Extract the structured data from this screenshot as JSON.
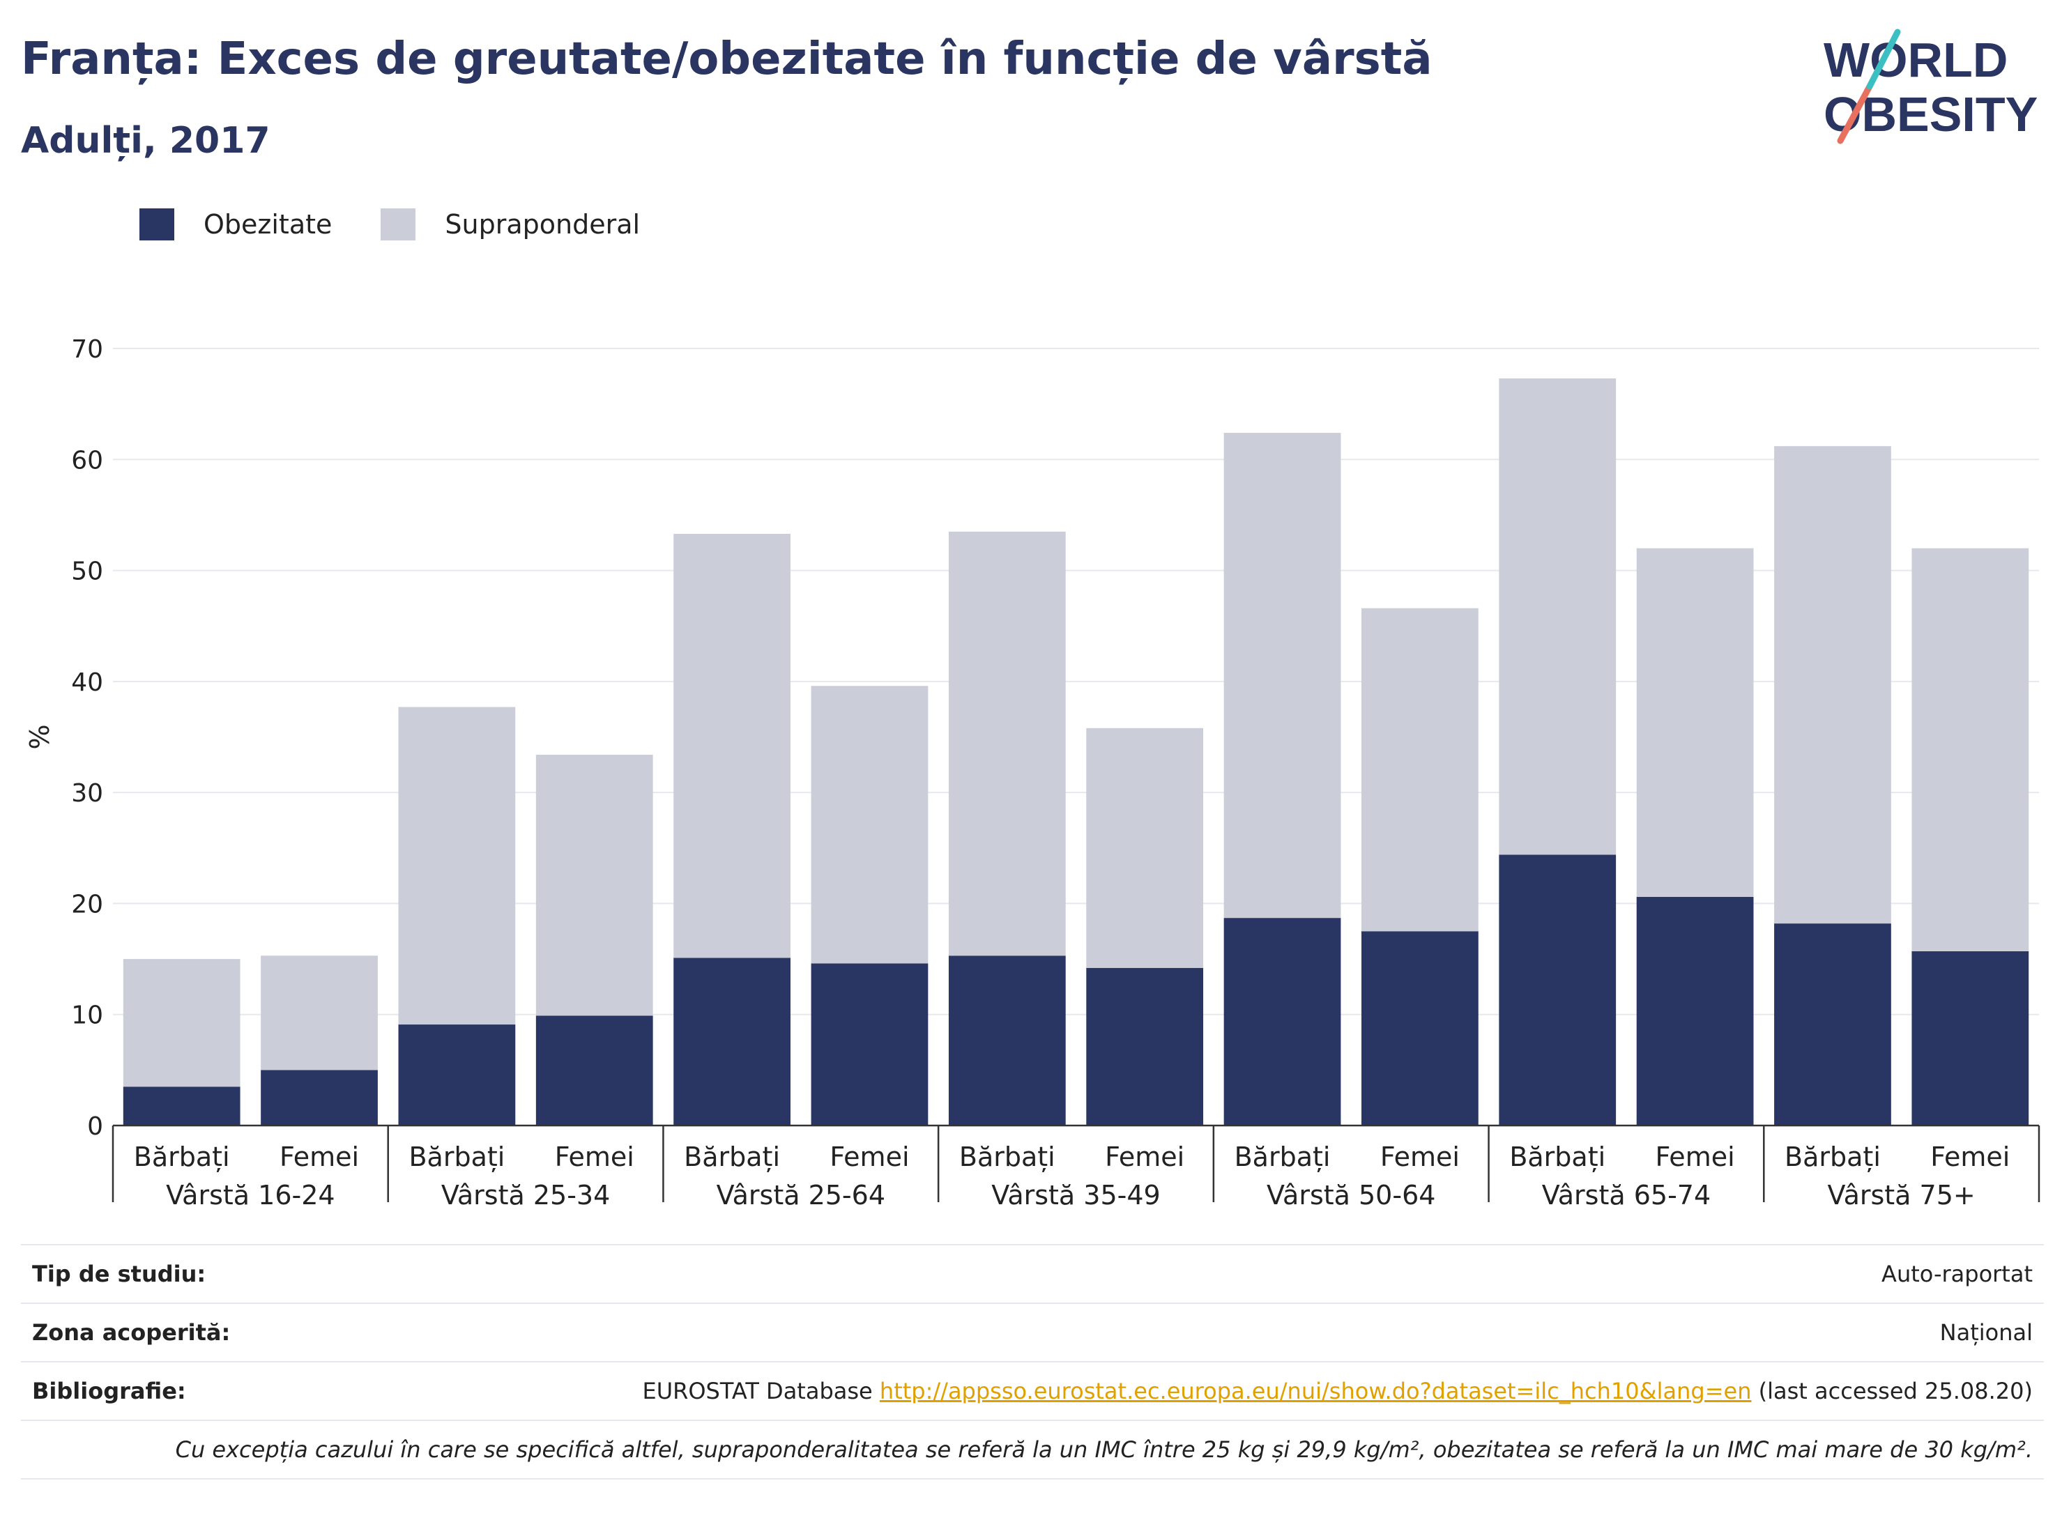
{
  "title": "Franța: Exces de greutate/obezitate în funcție de vârstă",
  "subtitle": "Adulți, 2017",
  "logo": {
    "line1": "WORLD",
    "line2": "OBESITY"
  },
  "legend": [
    {
      "label": "Obezitate",
      "color": "#293563"
    },
    {
      "label": "Supraponderal",
      "color": "#cbcdd8"
    }
  ],
  "chart_data": {
    "type": "bar",
    "stacked": true,
    "ylabel": "%",
    "ylim": [
      0,
      70
    ],
    "yticks": [
      0,
      10,
      20,
      30,
      40,
      50,
      60,
      70
    ],
    "grid": true,
    "legend_position": "top-left",
    "categories": [
      "Bărbați",
      "Femei",
      "Bărbați",
      "Femei",
      "Bărbați",
      "Femei",
      "Bărbați",
      "Femei",
      "Bărbați",
      "Femei",
      "Bărbați",
      "Femei",
      "Bărbați",
      "Femei"
    ],
    "groups": [
      "Vârstă 16-24",
      "Vârstă 25-34",
      "Vârstă 25-64",
      "Vârstă 35-49",
      "Vârstă 50-64",
      "Vârstă 65-74",
      "Vârstă 75+"
    ],
    "series": [
      {
        "name": "Obezitate",
        "color": "#293563",
        "values": [
          3.5,
          5.0,
          9.1,
          9.9,
          15.1,
          14.6,
          15.3,
          14.2,
          18.7,
          17.5,
          24.4,
          20.6,
          18.2,
          15.7
        ]
      },
      {
        "name": "Supraponderal",
        "color": "#cbcdd8",
        "values": [
          11.5,
          10.3,
          28.6,
          23.5,
          38.2,
          25.0,
          38.2,
          21.6,
          43.7,
          29.1,
          42.9,
          31.4,
          43.0,
          36.3
        ]
      }
    ]
  },
  "info": {
    "study_type_label": "Tip de studiu:",
    "study_type_value": "Auto-raportat",
    "coverage_label": "Zona acoperită:",
    "coverage_value": "Național",
    "bibliography_label": "Bibliografie:",
    "bibliography_prefix": "EUROSTAT Database ",
    "bibliography_link": "http://appsso.eurostat.ec.europa.eu/nui/show.do?dataset=ilc_hch10&lang=en",
    "bibliography_suffix": " (last accessed 25.08.20)",
    "note": "Cu excepția cazului în care se specifică altfel, supraponderalitatea se referă la un IMC între 25 kg și 29,9 kg/m², obezitatea se referă la un IMC mai mare de 30 kg/m²."
  }
}
